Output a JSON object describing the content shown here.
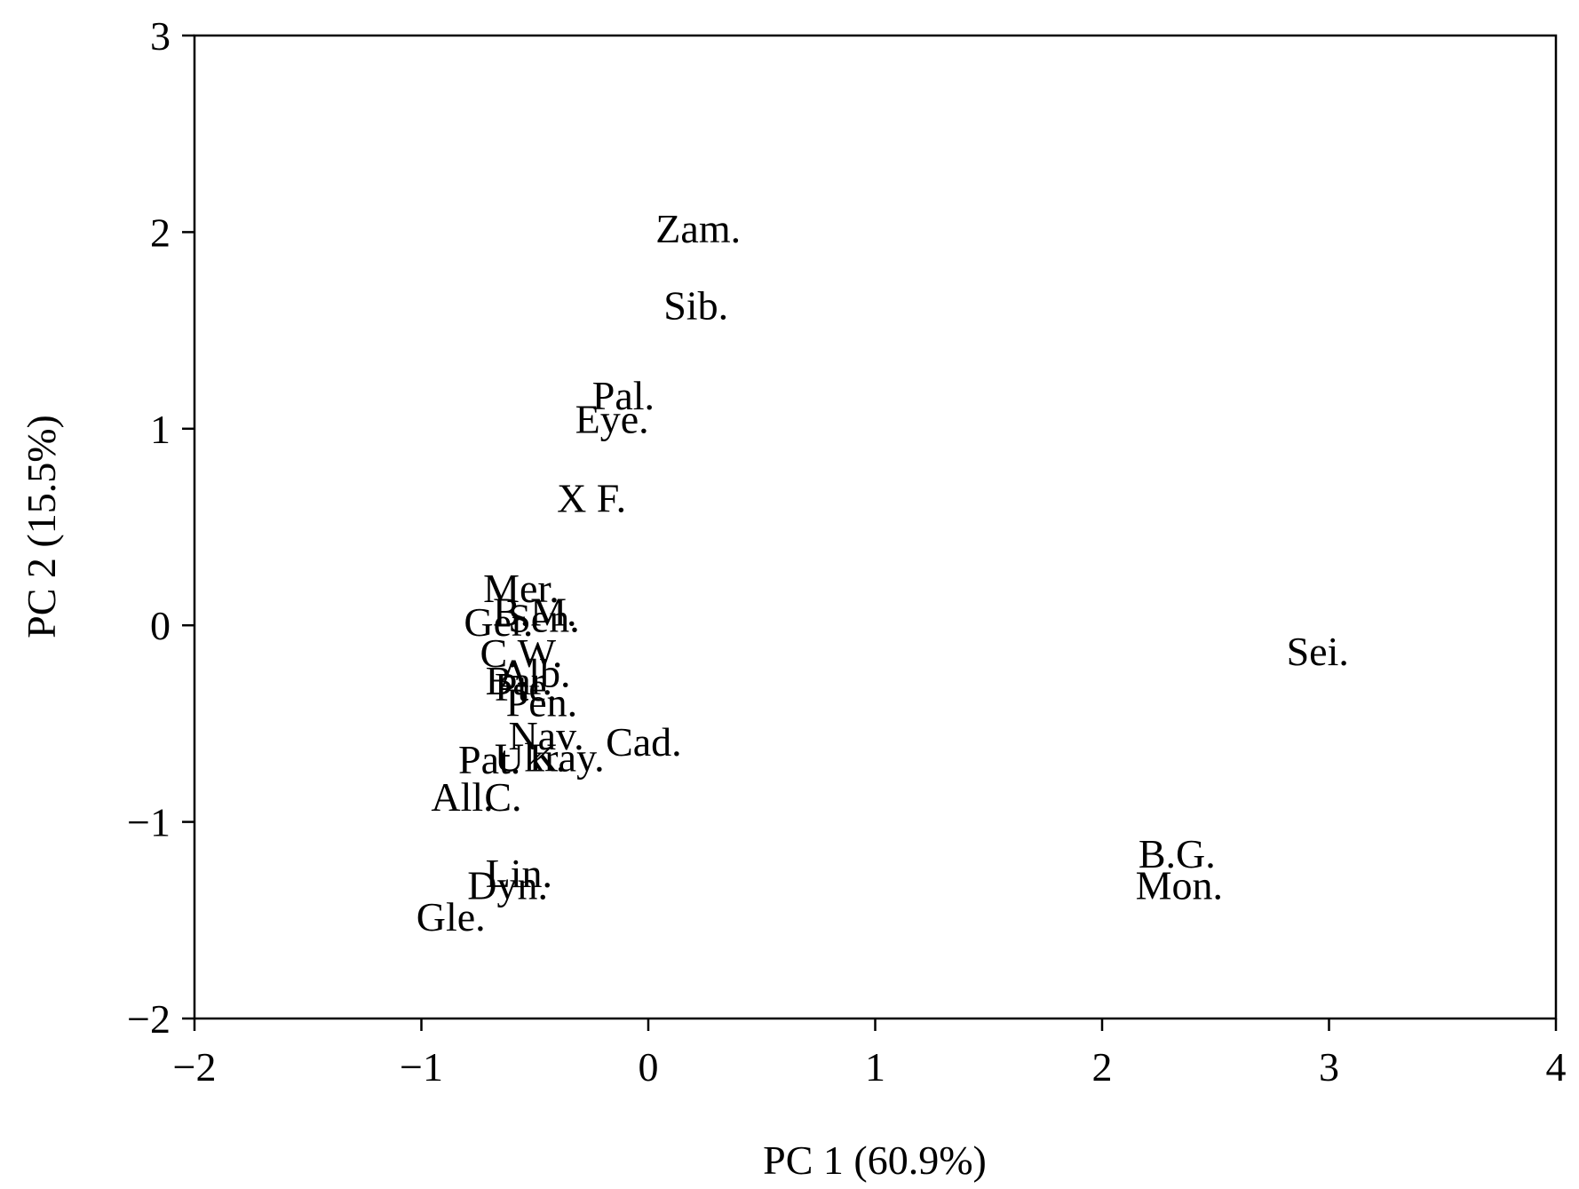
{
  "chart_data": {
    "type": "scatter",
    "title": "",
    "xlabel": "PC 1 (60.9%)",
    "ylabel": "PC 2 (15.5%)",
    "xlim": [
      -2,
      4
    ],
    "ylim": [
      -2,
      3
    ],
    "x_ticks": [
      -2,
      -1,
      0,
      1,
      2,
      3,
      4
    ],
    "y_ticks": [
      -2,
      -1,
      0,
      1,
      2,
      3
    ],
    "x_tick_labels": [
      "−2",
      "−1",
      "0",
      "1",
      "2",
      "3",
      "4"
    ],
    "y_tick_labels": [
      "−2",
      "−1",
      "0",
      "1",
      "2",
      "3"
    ],
    "grid": false,
    "legend": "none",
    "markers": "text labels only",
    "points": [
      {
        "label": "Zam.",
        "x": 0.22,
        "y": 2.02
      },
      {
        "label": "Sib.",
        "x": 0.21,
        "y": 1.63
      },
      {
        "label": "Pal.",
        "x": -0.11,
        "y": 1.17
      },
      {
        "label": "Eye.",
        "x": -0.16,
        "y": 1.05
      },
      {
        "label": "X F.",
        "x": -0.25,
        "y": 0.65
      },
      {
        "label": "Mer.",
        "x": -0.56,
        "y": 0.19
      },
      {
        "label": "B.M.",
        "x": -0.5,
        "y": 0.07
      },
      {
        "label": "Sen.",
        "x": -0.46,
        "y": 0.04
      },
      {
        "label": "Ger.",
        "x": -0.66,
        "y": 0.02
      },
      {
        "label": "C.W.",
        "x": -0.56,
        "y": -0.14
      },
      {
        "label": "Alb.",
        "x": -0.5,
        "y": -0.24
      },
      {
        "label": "Bar.",
        "x": -0.57,
        "y": -0.28
      },
      {
        "label": "Pte.",
        "x": -0.54,
        "y": -0.31
      },
      {
        "label": "Pen.",
        "x": -0.47,
        "y": -0.39
      },
      {
        "label": "Nav.",
        "x": -0.45,
        "y": -0.56
      },
      {
        "label": "Cad.",
        "x": -0.02,
        "y": -0.59
      },
      {
        "label": "Kay.",
        "x": -0.36,
        "y": -0.67
      },
      {
        "label": "Ukr.",
        "x": -0.52,
        "y": -0.67
      },
      {
        "label": "Pat.",
        "x": -0.7,
        "y": -0.68
      },
      {
        "label": "All.",
        "x": -0.82,
        "y": -0.87
      },
      {
        "label": "C.",
        "x": -0.64,
        "y": -0.87
      },
      {
        "label": "Lin.",
        "x": -0.57,
        "y": -1.26
      },
      {
        "label": "Dyn.",
        "x": -0.62,
        "y": -1.32
      },
      {
        "label": "Gle.",
        "x": -0.87,
        "y": -1.48
      },
      {
        "label": "Sei.",
        "x": 2.95,
        "y": -0.13
      },
      {
        "label": "B.G.",
        "x": 2.33,
        "y": -1.16
      },
      {
        "label": "Mon.",
        "x": 2.34,
        "y": -1.32
      }
    ]
  }
}
